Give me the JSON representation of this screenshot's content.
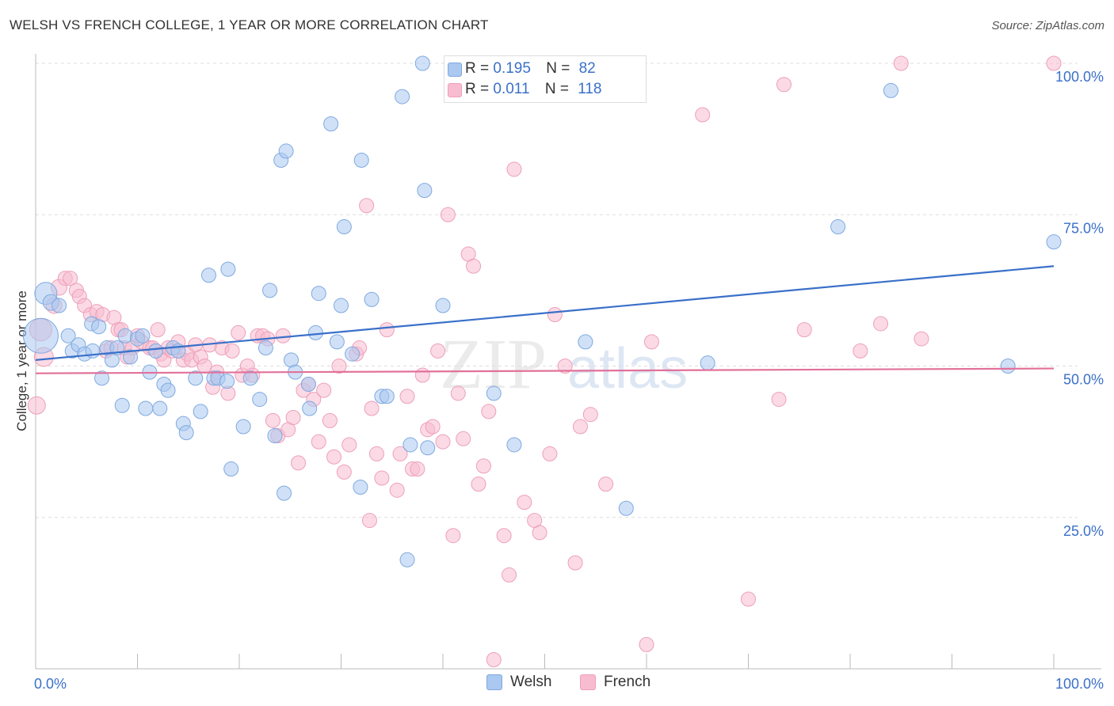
{
  "title": "WELSH VS FRENCH COLLEGE, 1 YEAR OR MORE CORRELATION CHART",
  "source": "Source: ZipAtlas.com",
  "watermark": "ZIPatlas",
  "stats": {
    "welsh": {
      "r_label": "R =",
      "r_value": "0.195",
      "n_label": "N =",
      "n_value": "82"
    },
    "french": {
      "r_label": "R =",
      "r_value": "0.011",
      "n_label": "N =",
      "n_value": "118"
    }
  },
  "legend": {
    "welsh": "Welsh",
    "french": "French"
  },
  "colors": {
    "welsh_fill": "#aac8f0",
    "welsh_stroke": "#7fa9e0",
    "welsh_line": "#3a70c9",
    "french_fill": "#f7bcd0",
    "french_stroke": "#eda0b9",
    "french_line": "#e2719a",
    "axis_text": "#3a70c9",
    "grid": "#dddddd"
  },
  "chart_data": {
    "type": "scatter",
    "title": "WELSH VS FRENCH COLLEGE, 1 YEAR OR MORE CORRELATION CHART",
    "xlabel": "",
    "ylabel": "College, 1 year or more",
    "xlim": [
      0,
      100
    ],
    "ylim": [
      0,
      100
    ],
    "x_tick_labels": [
      {
        "value": 0,
        "label": "0.0%"
      },
      {
        "value": 100,
        "label": "100.0%"
      }
    ],
    "y_tick_labels": [
      {
        "value": 25,
        "label": "25.0%"
      },
      {
        "value": 50,
        "label": "50.0%"
      },
      {
        "value": 75,
        "label": "75.0%"
      },
      {
        "value": 100,
        "label": "100.0%"
      }
    ],
    "grid": "horizontal dashed",
    "legend_position": "bottom",
    "series": [
      {
        "name": "Welsh",
        "trend": {
          "x": [
            0,
            100
          ],
          "y": [
            51.0,
            66.5
          ]
        },
        "points": [
          [
            0.5,
            55,
            22
          ],
          [
            1.0,
            62,
            14
          ],
          [
            1.5,
            60.5,
            10
          ],
          [
            2.3,
            60,
            9
          ],
          [
            3.2,
            55,
            9
          ],
          [
            3.6,
            52.5,
            9
          ],
          [
            4.2,
            53.5,
            9
          ],
          [
            4.8,
            52,
            9
          ],
          [
            5.5,
            57,
            9
          ],
          [
            5.6,
            52.5,
            9
          ],
          [
            6.2,
            56.5,
            9
          ],
          [
            6.5,
            48,
            9
          ],
          [
            7.0,
            53,
            9
          ],
          [
            7.5,
            51,
            9
          ],
          [
            8.0,
            53,
            9
          ],
          [
            8.5,
            43.5,
            9
          ],
          [
            8.8,
            55,
            9
          ],
          [
            9.3,
            51.5,
            9
          ],
          [
            10.0,
            54.5,
            9
          ],
          [
            10.5,
            55,
            9
          ],
          [
            10.8,
            43,
            9
          ],
          [
            11.2,
            49,
            9
          ],
          [
            11.8,
            52.5,
            9
          ],
          [
            12.2,
            43,
            9
          ],
          [
            12.6,
            47,
            9
          ],
          [
            13.0,
            46,
            9
          ],
          [
            13.5,
            53,
            9
          ],
          [
            14.0,
            52.5,
            9
          ],
          [
            14.5,
            40.5,
            9
          ],
          [
            14.8,
            39,
            9
          ],
          [
            15.7,
            48,
            9
          ],
          [
            16.2,
            42.5,
            9
          ],
          [
            17.0,
            65,
            9
          ],
          [
            17.5,
            48,
            9
          ],
          [
            17.9,
            48,
            9
          ],
          [
            18.8,
            47.5,
            9
          ],
          [
            18.9,
            66,
            9
          ],
          [
            19.2,
            33,
            9
          ],
          [
            20.4,
            40,
            9
          ],
          [
            21.1,
            48,
            9
          ],
          [
            22.0,
            44.5,
            9
          ],
          [
            22.6,
            53,
            9
          ],
          [
            23.0,
            62.5,
            9
          ],
          [
            23.5,
            38.5,
            9
          ],
          [
            24.1,
            84,
            9
          ],
          [
            24.4,
            29,
            9
          ],
          [
            24.6,
            85.5,
            9
          ],
          [
            25.1,
            51,
            9
          ],
          [
            25.5,
            49,
            9
          ],
          [
            26.8,
            47,
            9
          ],
          [
            26.9,
            43,
            9
          ],
          [
            27.5,
            55.5,
            9
          ],
          [
            27.8,
            62,
            9
          ],
          [
            29.0,
            90,
            9
          ],
          [
            29.6,
            54,
            9
          ],
          [
            30.0,
            60,
            9
          ],
          [
            30.3,
            73,
            9
          ],
          [
            31.1,
            52,
            9
          ],
          [
            31.9,
            30,
            9
          ],
          [
            32.0,
            84,
            9
          ],
          [
            33.0,
            61,
            9
          ],
          [
            34.0,
            45,
            9
          ],
          [
            34.5,
            45,
            9
          ],
          [
            36.0,
            94.5,
            9
          ],
          [
            36.5,
            18,
            9
          ],
          [
            36.8,
            37,
            9
          ],
          [
            38.0,
            100,
            9
          ],
          [
            38.2,
            79,
            9
          ],
          [
            38.5,
            36.5,
            9
          ],
          [
            40.0,
            60,
            9
          ],
          [
            41.5,
            100,
            9
          ],
          [
            45.0,
            45.5,
            9
          ],
          [
            47.0,
            37,
            9
          ],
          [
            54.0,
            54,
            9
          ],
          [
            58.0,
            26.5,
            9
          ],
          [
            66.0,
            50.5,
            9
          ],
          [
            78.8,
            73,
            9
          ],
          [
            84.0,
            95.5,
            9
          ],
          [
            95.5,
            50,
            9
          ],
          [
            100,
            70.5,
            9
          ]
        ]
      },
      {
        "name": "French",
        "trend": {
          "x": [
            0,
            100
          ],
          "y": [
            48.8,
            49.6
          ]
        },
        "points": [
          [
            0.1,
            43.5,
            11
          ],
          [
            0.5,
            56,
            14
          ],
          [
            0.8,
            51.5,
            12
          ],
          [
            1.8,
            60,
            10
          ],
          [
            2.3,
            63,
            10
          ],
          [
            2.9,
            64.5,
            9
          ],
          [
            3.4,
            64.5,
            9
          ],
          [
            4.0,
            62.5,
            9
          ],
          [
            4.3,
            61.5,
            9
          ],
          [
            4.8,
            60,
            9
          ],
          [
            5.4,
            58.5,
            9
          ],
          [
            6.0,
            59,
            9
          ],
          [
            6.6,
            58.5,
            9
          ],
          [
            6.9,
            52.5,
            9
          ],
          [
            7.4,
            53,
            9
          ],
          [
            7.7,
            58,
            9
          ],
          [
            8.1,
            56,
            9
          ],
          [
            8.4,
            56,
            9
          ],
          [
            8.7,
            53,
            9
          ],
          [
            9.0,
            51.5,
            9
          ],
          [
            9.5,
            53,
            9
          ],
          [
            10.0,
            55,
            9
          ],
          [
            10.4,
            54,
            9
          ],
          [
            11.2,
            53,
            9
          ],
          [
            11.5,
            53,
            9
          ],
          [
            12.0,
            56,
            9
          ],
          [
            12.3,
            52,
            9
          ],
          [
            12.6,
            51,
            9
          ],
          [
            13.0,
            53,
            9
          ],
          [
            13.4,
            52.5,
            9
          ],
          [
            14.0,
            54,
            9
          ],
          [
            14.5,
            51,
            9
          ],
          [
            14.9,
            52,
            9
          ],
          [
            15.3,
            51,
            9
          ],
          [
            15.7,
            53.5,
            9
          ],
          [
            16.2,
            51.5,
            9
          ],
          [
            16.6,
            50,
            9
          ],
          [
            17.1,
            53.5,
            9
          ],
          [
            17.4,
            46.5,
            9
          ],
          [
            17.8,
            49,
            9
          ],
          [
            18.3,
            53,
            9
          ],
          [
            18.9,
            45.5,
            9
          ],
          [
            19.3,
            52.5,
            9
          ],
          [
            19.9,
            55.5,
            9
          ],
          [
            20.3,
            48.5,
            9
          ],
          [
            20.8,
            50,
            9
          ],
          [
            21.3,
            48.5,
            9
          ],
          [
            21.8,
            55,
            9
          ],
          [
            22.3,
            55,
            9
          ],
          [
            22.8,
            54.5,
            9
          ],
          [
            23.3,
            41,
            9
          ],
          [
            23.8,
            38.5,
            9
          ],
          [
            24.3,
            55,
            9
          ],
          [
            24.8,
            39.5,
            9
          ],
          [
            25.3,
            41.5,
            9
          ],
          [
            25.8,
            34,
            9
          ],
          [
            26.3,
            46,
            9
          ],
          [
            26.8,
            47,
            9
          ],
          [
            27.3,
            44.5,
            9
          ],
          [
            27.8,
            37.5,
            9
          ],
          [
            28.3,
            46,
            9
          ],
          [
            28.9,
            41,
            9
          ],
          [
            29.3,
            35,
            9
          ],
          [
            29.8,
            50,
            9
          ],
          [
            30.3,
            32.5,
            9
          ],
          [
            30.8,
            37,
            9
          ],
          [
            31.5,
            52,
            9
          ],
          [
            31.8,
            53,
            9
          ],
          [
            32.5,
            76.5,
            9
          ],
          [
            32.8,
            24.5,
            9
          ],
          [
            33.0,
            43,
            9
          ],
          [
            33.5,
            35.5,
            9
          ],
          [
            34.0,
            31.5,
            9
          ],
          [
            34.5,
            56,
            9
          ],
          [
            35.5,
            29.5,
            9
          ],
          [
            35.8,
            35.5,
            9
          ],
          [
            36.5,
            45,
            9
          ],
          [
            37.0,
            33,
            9
          ],
          [
            37.5,
            33,
            9
          ],
          [
            38.0,
            48.5,
            9
          ],
          [
            38.5,
            39.5,
            9
          ],
          [
            39.0,
            40,
            9
          ],
          [
            39.5,
            52.5,
            9
          ],
          [
            40.0,
            37.5,
            9
          ],
          [
            40.5,
            75,
            9
          ],
          [
            41.0,
            22,
            9
          ],
          [
            41.5,
            45.5,
            9
          ],
          [
            42.0,
            38,
            9
          ],
          [
            42.5,
            68.5,
            9
          ],
          [
            43.0,
            66.5,
            9
          ],
          [
            43.5,
            30.5,
            9
          ],
          [
            44.0,
            33.5,
            9
          ],
          [
            44.5,
            42.5,
            9
          ],
          [
            45.0,
            1.5,
            9
          ],
          [
            46.0,
            22,
            9
          ],
          [
            46.5,
            15.5,
            9
          ],
          [
            47.0,
            82.5,
            9
          ],
          [
            48.0,
            27.5,
            9
          ],
          [
            49.0,
            24.5,
            9
          ],
          [
            49.5,
            22.5,
            9
          ],
          [
            50.5,
            35.5,
            9
          ],
          [
            51.0,
            58.5,
            9
          ],
          [
            52.0,
            50,
            9
          ],
          [
            53.0,
            17.5,
            9
          ],
          [
            53.5,
            40,
            9
          ],
          [
            54.5,
            42,
            9
          ],
          [
            55.5,
            100,
            9
          ],
          [
            56.0,
            30.5,
            9
          ],
          [
            60.0,
            4,
            9
          ],
          [
            60.5,
            54,
            9
          ],
          [
            65.5,
            91.5,
            9
          ],
          [
            70.0,
            11.5,
            9
          ],
          [
            73.0,
            44.5,
            9
          ],
          [
            73.5,
            96.5,
            9
          ],
          [
            75.5,
            56,
            9
          ],
          [
            81.0,
            52.5,
            9
          ],
          [
            83.0,
            57,
            9
          ],
          [
            85.0,
            100,
            9
          ],
          [
            87.0,
            54.5,
            9
          ],
          [
            100,
            100,
            9
          ]
        ]
      }
    ]
  }
}
